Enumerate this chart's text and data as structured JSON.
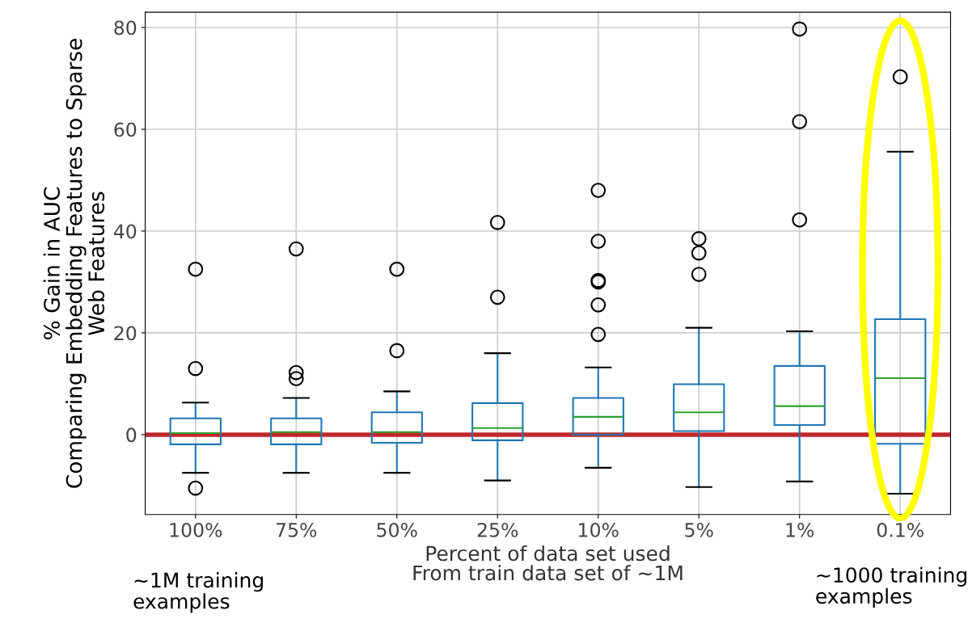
{
  "chart_data": {
    "type": "box",
    "xlabel": "Percent of data set used\nFrom train data set of ~1M",
    "ylabel": "% Gain in AUC\nComparing Embedding Features to Sparse\nWeb Features",
    "categories": [
      "100%",
      "75%",
      "50%",
      "25%",
      "10%",
      "5%",
      "1%",
      "0.1%"
    ],
    "ylim": [
      -15.7,
      83
    ],
    "yticks": [
      0,
      20,
      40,
      60,
      80
    ],
    "grid": true,
    "ref_lines": [
      {
        "axis": "y",
        "value": 0,
        "color": "#c0282c"
      }
    ],
    "annotations": [
      "~1M training\nexamples",
      "~1000 training\nexamples"
    ],
    "series": [
      {
        "color": "#1f77b4",
        "boxes": [
          {
            "low": -7.5,
            "q1": -1.9,
            "median": 0.3,
            "q3": 3.2,
            "high": 6.3,
            "outliers": [
              32.5,
              13,
              -10.5
            ]
          },
          {
            "low": -7.5,
            "q1": -1.9,
            "median": 0.5,
            "q3": 3.2,
            "high": 7.2,
            "outliers": [
              36.5,
              12.2,
              11
            ]
          },
          {
            "low": -7.5,
            "q1": -1.6,
            "median": 0.5,
            "q3": 4.4,
            "high": 8.5,
            "outliers": [
              32.5,
              16.5
            ]
          },
          {
            "low": -9,
            "q1": -1.1,
            "median": 1.3,
            "q3": 6.2,
            "high": 16,
            "outliers": [
              41.7,
              27
            ]
          },
          {
            "low": -6.5,
            "q1": 0,
            "median": 3.5,
            "q3": 7.2,
            "high": 13.2,
            "outliers": [
              48,
              38,
              30.3,
              30,
              25.5,
              19.7
            ]
          },
          {
            "low": -10.3,
            "q1": 0.7,
            "median": 4.4,
            "q3": 9.9,
            "high": 21,
            "outliers": [
              38.5,
              35.7,
              31.5
            ]
          },
          {
            "low": -9.2,
            "q1": 1.9,
            "median": 5.6,
            "q3": 13.5,
            "high": 20.3,
            "outliers": [
              79.7,
              61.5,
              42.2
            ]
          },
          {
            "low": -11.6,
            "q1": -1.8,
            "median": 11.1,
            "q3": 22.7,
            "high": 55.6,
            "outliers": [
              70.3
            ]
          }
        ]
      }
    ]
  }
}
